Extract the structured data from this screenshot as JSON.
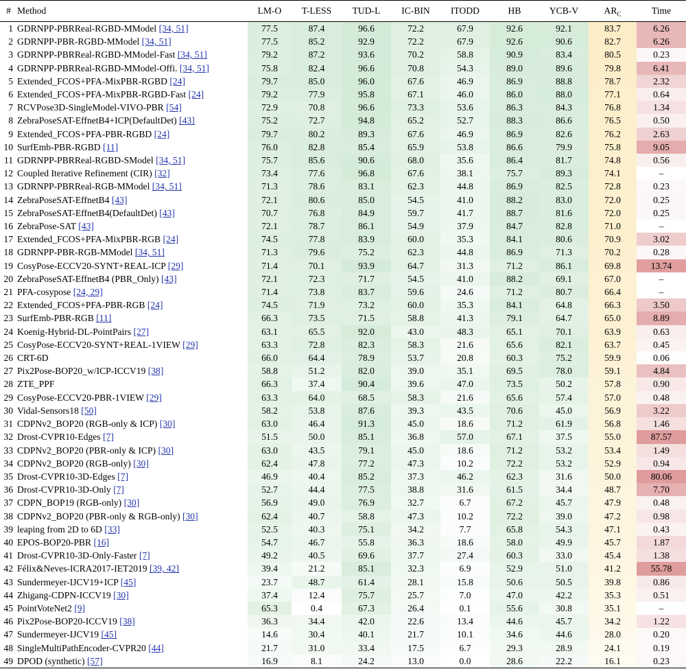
{
  "header": {
    "index": "#",
    "method": "Method",
    "columns": [
      "LM-O",
      "T-LESS",
      "TUD-L",
      "IC-BIN",
      "ITODD",
      "HB",
      "YCB-V"
    ],
    "ar_main": "AR",
    "ar_sub": "C",
    "time": "Time"
  },
  "colors": {
    "green": "#d2ead6",
    "yellow": "#fcedc6",
    "red": "#d98a8a"
  },
  "rows": [
    {
      "n": "1",
      "name": "GDRNPP-PBRReal-RGBD-MModel",
      "ref": "[34, 51]",
      "vals": [
        "77.5",
        "87.4",
        "96.6",
        "72.2",
        "67.9",
        "92.6",
        "92.1"
      ],
      "ar": "83.7",
      "time": "6.26"
    },
    {
      "n": "2",
      "name": "GDRNPP-PBR-RGBD-MModel",
      "ref": "[34, 51]",
      "vals": [
        "77.5",
        "85.2",
        "92.9",
        "72.2",
        "67.9",
        "92.6",
        "90.6"
      ],
      "ar": "82.7",
      "time": "6.26"
    },
    {
      "n": "3",
      "name": "GDRNPP-PBRReal-RGBD-MModel-Fast",
      "ref": "[34, 51]",
      "vals": [
        "79.2",
        "87.2",
        "93.6",
        "70.2",
        "58.8",
        "90.9",
        "83.4"
      ],
      "ar": "80.5",
      "time": "0.23"
    },
    {
      "n": "4",
      "name": "GDRNPP-PBRReal-RGBD-MModel-Offi.",
      "ref": "[34, 51]",
      "vals": [
        "75.8",
        "82.4",
        "96.6",
        "70.8",
        "54.3",
        "89.0",
        "89.6"
      ],
      "ar": "79.8",
      "time": "6.41"
    },
    {
      "n": "5",
      "name": "Extended_FCOS+PFA-MixPBR-RGBD",
      "ref": "[24]",
      "vals": [
        "79.7",
        "85.0",
        "96.0",
        "67.6",
        "46.9",
        "86.9",
        "88.8"
      ],
      "ar": "78.7",
      "time": "2.32"
    },
    {
      "n": "6",
      "name": "Extended_FCOS+PFA-MixPBR-RGBD-Fast",
      "ref": "[24]",
      "vals": [
        "79.2",
        "77.9",
        "95.8",
        "67.1",
        "46.0",
        "86.0",
        "88.0"
      ],
      "ar": "77.1",
      "time": "0.64"
    },
    {
      "n": "7",
      "name": "RCVPose3D-SingleModel-VIVO-PBR",
      "ref": "[54]",
      "vals": [
        "72.9",
        "70.8",
        "96.6",
        "73.3",
        "53.6",
        "86.3",
        "84.3"
      ],
      "ar": "76.8",
      "time": "1.34"
    },
    {
      "n": "8",
      "name": "ZebraPoseSAT-EffnetB4+ICP(DefaultDet)",
      "ref": "[43]",
      "vals": [
        "75.2",
        "72.7",
        "94.8",
        "65.2",
        "52.7",
        "88.3",
        "86.6"
      ],
      "ar": "76.5",
      "time": "0.50"
    },
    {
      "n": "9",
      "name": "Extended_FCOS+PFA-PBR-RGBD",
      "ref": "[24]",
      "vals": [
        "79.7",
        "80.2",
        "89.3",
        "67.6",
        "46.9",
        "86.9",
        "82.6"
      ],
      "ar": "76.2",
      "time": "2.63"
    },
    {
      "n": "10",
      "name": "SurfEmb-PBR-RGBD",
      "ref": "[11]",
      "vals": [
        "76.0",
        "82.8",
        "85.4",
        "65.9",
        "53.8",
        "86.6",
        "79.9"
      ],
      "ar": "75.8",
      "time": "9.05"
    },
    {
      "n": "11",
      "name": "GDRNPP-PBRReal-RGBD-SModel",
      "ref": "[34, 51]",
      "vals": [
        "75.7",
        "85.6",
        "90.6",
        "68.0",
        "35.6",
        "86.4",
        "81.7"
      ],
      "ar": "74.8",
      "time": "0.56"
    },
    {
      "n": "12",
      "name": "Coupled Iterative Refinement (CIR)",
      "ref": "[32]",
      "vals": [
        "73.4",
        "77.6",
        "96.8",
        "67.6",
        "38.1",
        "75.7",
        "89.3"
      ],
      "ar": "74.1",
      "time": "–"
    },
    {
      "n": "13",
      "name": "GDRNPP-PBRReal-RGB-MModel",
      "ref": "[34, 51]",
      "vals": [
        "71.3",
        "78.6",
        "83.1",
        "62.3",
        "44.8",
        "86.9",
        "82.5"
      ],
      "ar": "72.8",
      "time": "0.23"
    },
    {
      "n": "14",
      "name": "ZebraPoseSAT-EffnetB4",
      "ref": "[43]",
      "vals": [
        "72.1",
        "80.6",
        "85.0",
        "54.5",
        "41.0",
        "88.2",
        "83.0"
      ],
      "ar": "72.0",
      "time": "0.25"
    },
    {
      "n": "15",
      "name": "ZebraPoseSAT-EffnetB4(DefaultDet)",
      "ref": "[43]",
      "vals": [
        "70.7",
        "76.8",
        "84.9",
        "59.7",
        "41.7",
        "88.7",
        "81.6"
      ],
      "ar": "72.0",
      "time": "0.25"
    },
    {
      "n": "16",
      "name": "ZebraPose-SAT",
      "ref": "[43]",
      "vals": [
        "72.1",
        "78.7",
        "86.1",
        "54.9",
        "37.9",
        "84.7",
        "82.8"
      ],
      "ar": "71.0",
      "time": "–"
    },
    {
      "n": "17",
      "name": "Extended_FCOS+PFA-MixPBR-RGB",
      "ref": "[24]",
      "vals": [
        "74.5",
        "77.8",
        "83.9",
        "60.0",
        "35.3",
        "84.1",
        "80.6"
      ],
      "ar": "70.9",
      "time": "3.02"
    },
    {
      "n": "18",
      "name": "GDRNPP-PBR-RGB-MModel",
      "ref": "[34, 51]",
      "vals": [
        "71.3",
        "79.6",
        "75.2",
        "62.3",
        "44.8",
        "86.9",
        "71.3"
      ],
      "ar": "70.2",
      "time": "0.28"
    },
    {
      "n": "19",
      "name": "CosyPose-ECCV20-SYNT+REAL-ICP",
      "ref": "[29]",
      "vals": [
        "71.4",
        "70.1",
        "93.9",
        "64.7",
        "31.3",
        "71.2",
        "86.1"
      ],
      "ar": "69.8",
      "time": "13.74"
    },
    {
      "n": "20",
      "name": "ZebraPoseSAT-EffnetB4 (PBR_Only)",
      "ref": "[43]",
      "vals": [
        "72.1",
        "72.3",
        "71.7",
        "54.5",
        "41.0",
        "88.2",
        "69.1"
      ],
      "ar": "67.0",
      "time": "–"
    },
    {
      "n": "21",
      "name": "PFA-cosypose",
      "ref": "[24, 29]",
      "vals": [
        "71.4",
        "73.8",
        "83.7",
        "59.6",
        "24.6",
        "71.2",
        "80.7"
      ],
      "ar": "66.4",
      "time": "–"
    },
    {
      "n": "22",
      "name": "Extended_FCOS+PFA-PBR-RGB",
      "ref": "[24]",
      "vals": [
        "74.5",
        "71.9",
        "73.2",
        "60.0",
        "35.3",
        "84.1",
        "64.8"
      ],
      "ar": "66.3",
      "time": "3.50"
    },
    {
      "n": "23",
      "name": "SurfEmb-PBR-RGB",
      "ref": "[11]",
      "vals": [
        "66.3",
        "73.5",
        "71.5",
        "58.8",
        "41.3",
        "79.1",
        "64.7"
      ],
      "ar": "65.0",
      "time": "8.89"
    },
    {
      "n": "24",
      "name": "Koenig-Hybrid-DL-PointPairs",
      "ref": "[27]",
      "vals": [
        "63.1",
        "65.5",
        "92.0",
        "43.0",
        "48.3",
        "65.1",
        "70.1"
      ],
      "ar": "63.9",
      "time": "0.63"
    },
    {
      "n": "25",
      "name": "CosyPose-ECCV20-SYNT+REAL-1VIEW",
      "ref": "[29]",
      "vals": [
        "63.3",
        "72.8",
        "82.3",
        "58.3",
        "21.6",
        "65.6",
        "82.1"
      ],
      "ar": "63.7",
      "time": "0.45"
    },
    {
      "n": "26",
      "name": "CRT-6D",
      "ref": "",
      "vals": [
        "66.0",
        "64.4",
        "78.9",
        "53.7",
        "20.8",
        "60.3",
        "75.2"
      ],
      "ar": "59.9",
      "time": "0.06"
    },
    {
      "n": "27",
      "name": "Pix2Pose-BOP20_w/ICP-ICCV19",
      "ref": "[38]",
      "vals": [
        "58.8",
        "51.2",
        "82.0",
        "39.0",
        "35.1",
        "69.5",
        "78.0"
      ],
      "ar": "59.1",
      "time": "4.84"
    },
    {
      "n": "28",
      "name": "ZTE_PPF",
      "ref": "",
      "vals": [
        "66.3",
        "37.4",
        "90.4",
        "39.6",
        "47.0",
        "73.5",
        "50.2"
      ],
      "ar": "57.8",
      "time": "0.90"
    },
    {
      "n": "29",
      "name": "CosyPose-ECCV20-PBR-1VIEW",
      "ref": "[29]",
      "vals": [
        "63.3",
        "64.0",
        "68.5",
        "58.3",
        "21.6",
        "65.6",
        "57.4"
      ],
      "ar": "57.0",
      "time": "0.48"
    },
    {
      "n": "30",
      "name": "Vidal-Sensors18",
      "ref": "[50]",
      "vals": [
        "58.2",
        "53.8",
        "87.6",
        "39.3",
        "43.5",
        "70.6",
        "45.0"
      ],
      "ar": "56.9",
      "time": "3.22"
    },
    {
      "n": "31",
      "name": "CDPNv2_BOP20 (RGB-only & ICP)",
      "ref": "[30]",
      "vals": [
        "63.0",
        "46.4",
        "91.3",
        "45.0",
        "18.6",
        "71.2",
        "61.9"
      ],
      "ar": "56.8",
      "time": "1.46"
    },
    {
      "n": "32",
      "name": "Drost-CVPR10-Edges",
      "ref": "[7]",
      "vals": [
        "51.5",
        "50.0",
        "85.1",
        "36.8",
        "57.0",
        "67.1",
        "37.5"
      ],
      "ar": "55.0",
      "time": "87.57"
    },
    {
      "n": "33",
      "name": "CDPNv2_BOP20 (PBR-only & ICP)",
      "ref": "[30]",
      "vals": [
        "63.0",
        "43.5",
        "79.1",
        "45.0",
        "18.6",
        "71.2",
        "53.2"
      ],
      "ar": "53.4",
      "time": "1.49"
    },
    {
      "n": "34",
      "name": "CDPNv2_BOP20 (RGB-only)",
      "ref": "[30]",
      "vals": [
        "62.4",
        "47.8",
        "77.2",
        "47.3",
        "10.2",
        "72.2",
        "53.2"
      ],
      "ar": "52.9",
      "time": "0.94"
    },
    {
      "n": "35",
      "name": "Drost-CVPR10-3D-Edges",
      "ref": "[7]",
      "vals": [
        "46.9",
        "40.4",
        "85.2",
        "37.3",
        "46.2",
        "62.3",
        "31.6"
      ],
      "ar": "50.0",
      "time": "80.06"
    },
    {
      "n": "36",
      "name": "Drost-CVPR10-3D-Only",
      "ref": "[7]",
      "vals": [
        "52.7",
        "44.4",
        "77.5",
        "38.8",
        "31.6",
        "61.5",
        "34.4"
      ],
      "ar": "48.7",
      "time": "7.70"
    },
    {
      "n": "37",
      "name": "CDPN_BOP19 (RGB-only)",
      "ref": "[30]",
      "vals": [
        "56.9",
        "49.0",
        "76.9",
        "32.7",
        "6.7",
        "67.2",
        "45.7"
      ],
      "ar": "47.9",
      "time": "0.48"
    },
    {
      "n": "38",
      "name": "CDPNv2_BOP20 (PBR-only & RGB-only)",
      "ref": "[30]",
      "vals": [
        "62.4",
        "40.7",
        "58.8",
        "47.3",
        "10.2",
        "72.2",
        "39.0"
      ],
      "ar": "47.2",
      "time": "0.98"
    },
    {
      "n": "39",
      "name": "leaping from 2D to 6D",
      "ref": "[33]",
      "vals": [
        "52.5",
        "40.3",
        "75.1",
        "34.2",
        "7.7",
        "65.8",
        "54.3"
      ],
      "ar": "47.1",
      "time": "0.43"
    },
    {
      "n": "40",
      "name": "EPOS-BOP20-PBR",
      "ref": "[16]",
      "vals": [
        "54.7",
        "46.7",
        "55.8",
        "36.3",
        "18.6",
        "58.0",
        "49.9"
      ],
      "ar": "45.7",
      "time": "1.87"
    },
    {
      "n": "41",
      "name": "Drost-CVPR10-3D-Only-Faster",
      "ref": "[7]",
      "vals": [
        "49.2",
        "40.5",
        "69.6",
        "37.7",
        "27.4",
        "60.3",
        "33.0"
      ],
      "ar": "45.4",
      "time": "1.38"
    },
    {
      "n": "42",
      "name": "Félix&Neves-ICRA2017-IET2019",
      "ref": "[39, 42]",
      "vals": [
        "39.4",
        "21.2",
        "85.1",
        "32.3",
        "6.9",
        "52.9",
        "51.0"
      ],
      "ar": "41.2",
      "time": "55.78"
    },
    {
      "n": "43",
      "name": "Sundermeyer-IJCV19+ICP",
      "ref": "[45]",
      "vals": [
        "23.7",
        "48.7",
        "61.4",
        "28.1",
        "15.8",
        "50.6",
        "50.5"
      ],
      "ar": "39.8",
      "time": "0.86"
    },
    {
      "n": "44",
      "name": "Zhigang-CDPN-ICCV19",
      "ref": "[30]",
      "vals": [
        "37.4",
        "12.4",
        "75.7",
        "25.7",
        "7.0",
        "47.0",
        "42.2"
      ],
      "ar": "35.3",
      "time": "0.51"
    },
    {
      "n": "45",
      "name": "PointVoteNet2",
      "ref": "[9]",
      "vals": [
        "65.3",
        "0.4",
        "67.3",
        "26.4",
        "0.1",
        "55.6",
        "30.8"
      ],
      "ar": "35.1",
      "time": "–"
    },
    {
      "n": "46",
      "name": "Pix2Pose-BOP20-ICCV19",
      "ref": "[38]",
      "vals": [
        "36.3",
        "34.4",
        "42.0",
        "22.6",
        "13.4",
        "44.6",
        "45.7"
      ],
      "ar": "34.2",
      "time": "1.22"
    },
    {
      "n": "47",
      "name": "Sundermeyer-IJCV19",
      "ref": "[45]",
      "vals": [
        "14.6",
        "30.4",
        "40.1",
        "21.7",
        "10.1",
        "34.6",
        "44.6"
      ],
      "ar": "28.0",
      "time": "0.20"
    },
    {
      "n": "48",
      "name": "SingleMultiPathEncoder-CVPR20",
      "ref": "[44]",
      "vals": [
        "21.7",
        "31.0",
        "33.4",
        "17.5",
        "6.7",
        "29.3",
        "28.9"
      ],
      "ar": "24.1",
      "time": "0.19"
    },
    {
      "n": "49",
      "name": "DPOD (synthetic)",
      "ref": "[57]",
      "vals": [
        "16.9",
        "8.1",
        "24.2",
        "13.0",
        "0.0",
        "28.6",
        "22.2"
      ],
      "ar": "16.1",
      "time": "0.23"
    }
  ]
}
